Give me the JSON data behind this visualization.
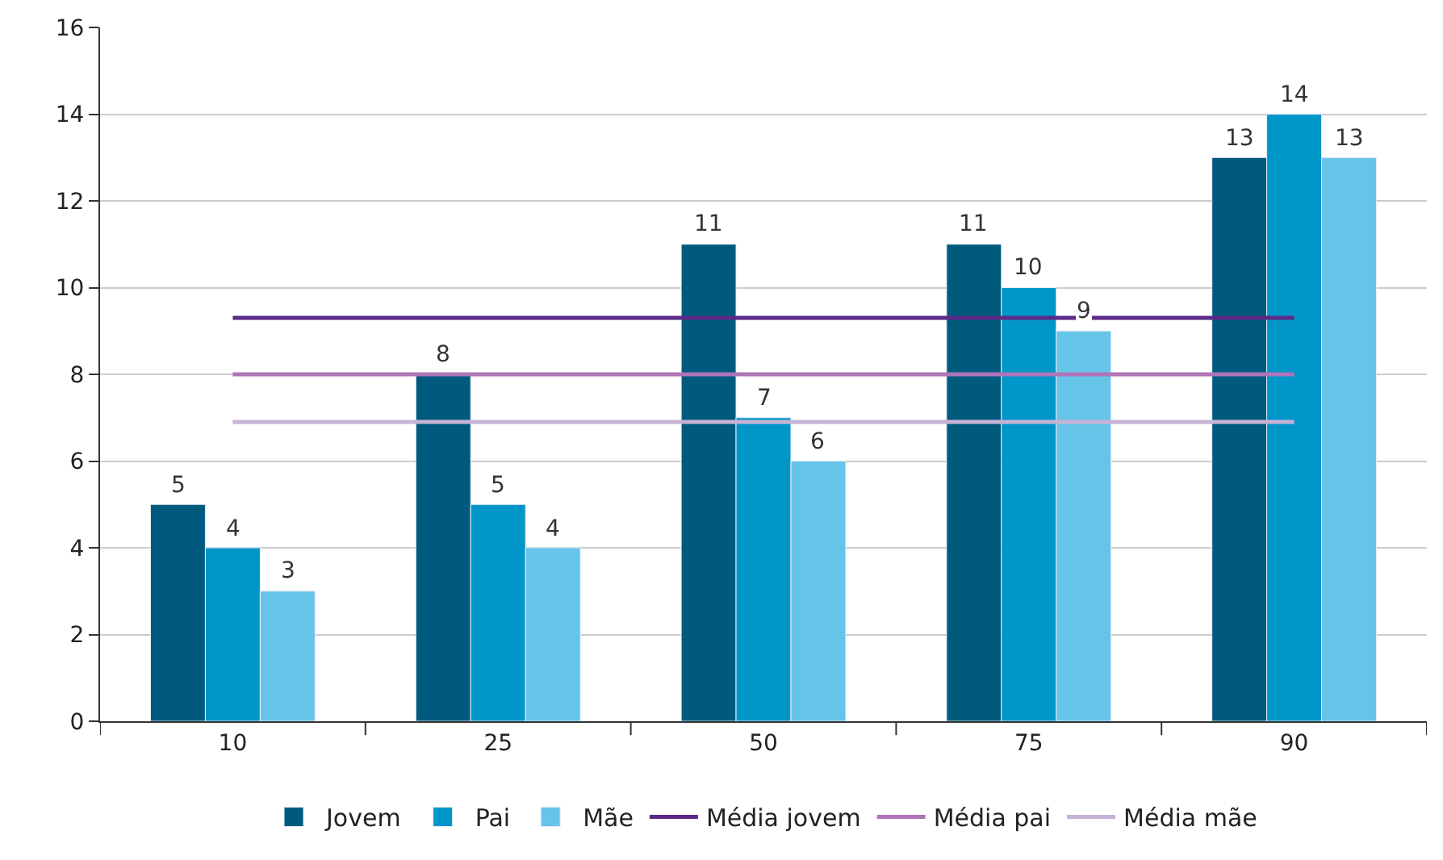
{
  "chart_data": {
    "type": "bar",
    "categories": [
      "10",
      "25",
      "50",
      "75",
      "90"
    ],
    "series": [
      {
        "name": "Jovem",
        "color": "#005a7d",
        "values": [
          5,
          8,
          11,
          11,
          13
        ],
        "value_labels": [
          "5",
          "8",
          "11",
          "11",
          "13"
        ]
      },
      {
        "name": "Pai",
        "color": "#0096c8",
        "values": [
          4,
          5,
          7,
          10,
          14
        ],
        "value_labels": [
          "4",
          "5",
          "7",
          "10",
          "14"
        ]
      },
      {
        "name": "Mãe",
        "color": "#66c4e8",
        "values": [
          3,
          4,
          6,
          9,
          13
        ],
        "value_labels": [
          "3",
          "4",
          "6",
          "9",
          "13"
        ]
      },
      {
        "name": "Média jovem",
        "type": "line",
        "color": "#5b2a86",
        "values": [
          9.3,
          9.3,
          9.3,
          9.3,
          9.3
        ]
      },
      {
        "name": "Média pai",
        "type": "line",
        "color": "#b074b8",
        "values": [
          8,
          8,
          8,
          8,
          8
        ]
      },
      {
        "name": "Média mãe",
        "type": "line",
        "color": "#c7b3d6",
        "values": [
          6.9,
          6.9,
          6.9,
          6.9,
          6.9
        ]
      }
    ],
    "ylim": [
      0,
      16
    ],
    "yticks": [
      0,
      2,
      4,
      6,
      8,
      10,
      12,
      14,
      16
    ],
    "grid": "y",
    "legend": "bottom",
    "marker": "none",
    "line_style": "solid"
  }
}
